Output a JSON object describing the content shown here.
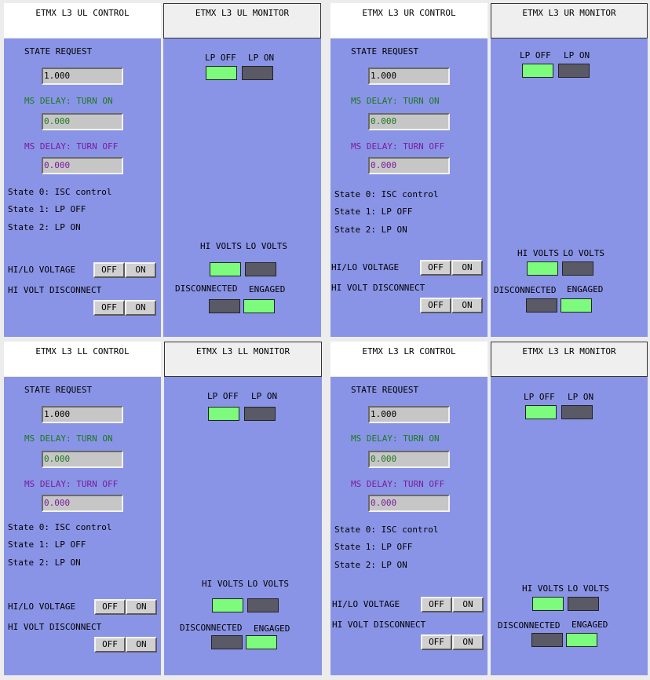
{
  "quadrants": {
    "ul": {
      "control_title": "ETMX L3 UL CONTROL",
      "monitor_title": "ETMX L3 UL MONITOR",
      "state_request_label": "STATE REQUEST",
      "state_request_value": "1.000",
      "delay_on_label": "MS DELAY: TURN ON",
      "delay_on_value": "0.000",
      "delay_off_label": "MS DELAY: TURN OFF",
      "delay_off_value": "0.000",
      "state0": "State 0: ISC control",
      "state1": "State 1: LP OFF",
      "state2": "State 2: LP ON",
      "hilo_label": "HI/LO VOLTAGE",
      "disconnect_label": "HI VOLT DISCONNECT",
      "off": "OFF",
      "on": "ON",
      "lp_off": "LP OFF",
      "lp_on": "LP ON",
      "hi_volts": "HI VOLTS",
      "lo_volts": "LO VOLTS",
      "disconnected": "DISCONNECTED",
      "engaged": "ENGAGED"
    },
    "ur": {
      "control_title": "ETMX L3 UR CONTROL",
      "monitor_title": "ETMX L3 UR MONITOR",
      "state_request_label": "STATE REQUEST",
      "state_request_value": "1.000",
      "delay_on_label": "MS DELAY: TURN ON",
      "delay_on_value": "0.000",
      "delay_off_label": "MS DELAY: TURN OFF",
      "delay_off_value": "0.000",
      "state0": "State 0: ISC control",
      "state1": "State 1: LP OFF",
      "state2": "State 2: LP ON",
      "hilo_label": "HI/LO VOLTAGE",
      "disconnect_label": "HI VOLT DISCONNECT",
      "off": "OFF",
      "on": "ON",
      "lp_off": "LP OFF",
      "lp_on": "LP ON",
      "hi_volts": "HI VOLTS",
      "lo_volts": "LO VOLTS",
      "disconnected": "DISCONNECTED",
      "engaged": "ENGAGED"
    },
    "ll": {
      "control_title": "ETMX L3 LL CONTROL",
      "monitor_title": "ETMX L3 LL MONITOR",
      "state_request_label": "STATE REQUEST",
      "state_request_value": "1.000",
      "delay_on_label": "MS DELAY: TURN ON",
      "delay_on_value": "0.000",
      "delay_off_label": "MS DELAY: TURN OFF",
      "delay_off_value": "0.000",
      "state0": "State 0: ISC control",
      "state1": "State 1: LP OFF",
      "state2": "State 2: LP ON",
      "hilo_label": "HI/LO VOLTAGE",
      "disconnect_label": "HI VOLT DISCONNECT",
      "off": "OFF",
      "on": "ON",
      "lp_off": "LP OFF",
      "lp_on": "LP ON",
      "hi_volts": "HI VOLTS",
      "lo_volts": "LO VOLTS",
      "disconnected": "DISCONNECTED",
      "engaged": "ENGAGED"
    },
    "lr": {
      "control_title": "ETMX L3 LR CONTROL",
      "monitor_title": "ETMX L3 LR MONITOR",
      "state_request_label": "STATE REQUEST",
      "state_request_value": "1.000",
      "delay_on_label": "MS DELAY: TURN ON",
      "delay_on_value": "0.000",
      "delay_off_label": "MS DELAY: TURN OFF",
      "delay_off_value": "0.000",
      "state0": "State 0: ISC control",
      "state1": "State 1: LP OFF",
      "state2": "State 2: LP ON",
      "hilo_label": "HI/LO VOLTAGE",
      "disconnect_label": "HI VOLT DISCONNECT",
      "off": "OFF",
      "on": "ON",
      "lp_off": "LP OFF",
      "lp_on": "LP ON",
      "hi_volts": "HI VOLTS",
      "lo_volts": "LO VOLTS",
      "disconnected": "DISCONNECTED",
      "engaged": "ENGAGED"
    }
  },
  "colors": {
    "panel_bg": "#8a94e6",
    "indicator_on": "#7dfb7d",
    "indicator_off": "#5a5a66",
    "delay_on_text": "#1b7a1b",
    "delay_off_text": "#7a1ba0"
  }
}
